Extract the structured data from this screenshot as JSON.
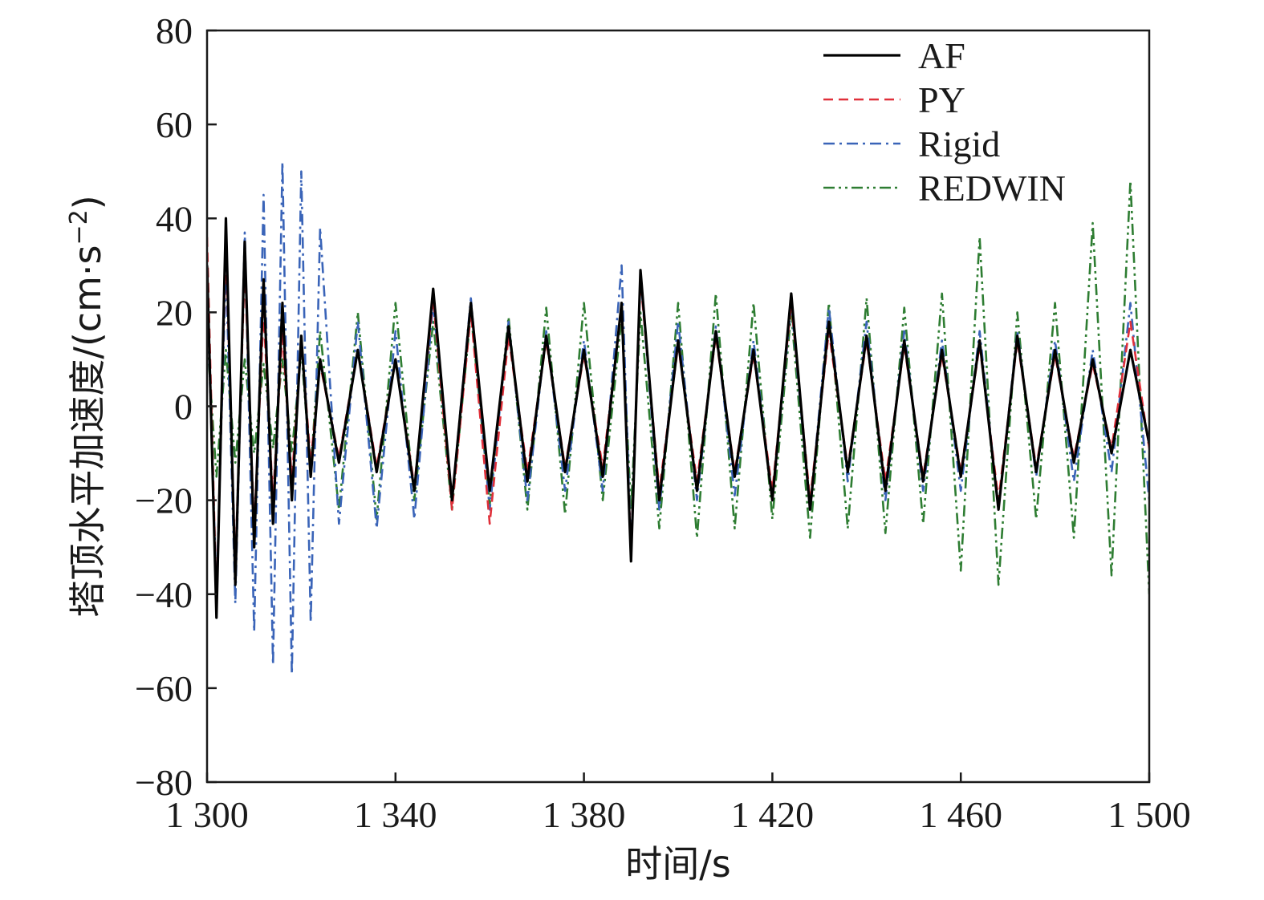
{
  "chart_data": {
    "type": "line",
    "xlabel": "时间/s",
    "ylabel": "塔顶水平加速度/(cm·s⁻²)",
    "ylabel_parts": {
      "main": "塔顶水平加速度/(cm·s",
      "sup": "−2",
      "end": ")"
    },
    "xlim": [
      1300,
      1500
    ],
    "ylim": [
      -80,
      80
    ],
    "xticks": [
      1300,
      1340,
      1380,
      1420,
      1460,
      1500
    ],
    "xtick_labels": [
      "1 300",
      "1 340",
      "1 380",
      "1 420",
      "1 460",
      "1 500"
    ],
    "yticks": [
      -80,
      -60,
      -40,
      -20,
      0,
      20,
      40,
      60,
      80
    ],
    "ytick_labels": [
      "−80",
      "−60",
      "−40",
      "−20",
      "0",
      "20",
      "40",
      "60",
      "80"
    ],
    "grid": false,
    "legend_position": "top-right",
    "series": [
      {
        "name": "AF",
        "color": "#000000",
        "dash": "solid",
        "x": [
          1300,
          1302,
          1304,
          1306,
          1308,
          1310,
          1312,
          1314,
          1316,
          1318,
          1320,
          1322,
          1324,
          1328,
          1332,
          1336,
          1340,
          1344,
          1348,
          1352,
          1356,
          1360,
          1364,
          1368,
          1372,
          1376,
          1380,
          1384,
          1388,
          1390,
          1392,
          1396,
          1400,
          1404,
          1408,
          1412,
          1416,
          1420,
          1424,
          1428,
          1432,
          1436,
          1440,
          1444,
          1448,
          1452,
          1456,
          1460,
          1464,
          1468,
          1472,
          1476,
          1480,
          1484,
          1488,
          1492,
          1496,
          1500
        ],
        "y": [
          30,
          -45,
          40,
          -38,
          35,
          -30,
          27,
          -25,
          22,
          -20,
          15,
          -15,
          10,
          -12,
          12,
          -14,
          10,
          -18,
          25,
          -20,
          22,
          -18,
          17,
          -16,
          15,
          -14,
          12,
          -15,
          22,
          -33,
          29,
          -20,
          14,
          -18,
          16,
          -15,
          12,
          -20,
          24,
          -22,
          18,
          -14,
          15,
          -18,
          14,
          -16,
          12,
          -15,
          14,
          -22,
          15,
          -14,
          12,
          -12,
          10,
          -10,
          12,
          -8
        ]
      },
      {
        "name": "PY",
        "color": "#e0303a",
        "dash": "dashed",
        "x": [
          1300,
          1302,
          1304,
          1306,
          1308,
          1310,
          1312,
          1314,
          1316,
          1318,
          1320,
          1322,
          1324,
          1328,
          1332,
          1336,
          1340,
          1344,
          1348,
          1352,
          1356,
          1360,
          1364,
          1368,
          1372,
          1376,
          1380,
          1384,
          1388,
          1390,
          1392,
          1396,
          1400,
          1404,
          1408,
          1412,
          1416,
          1420,
          1424,
          1428,
          1432,
          1436,
          1440,
          1444,
          1448,
          1452,
          1456,
          1460,
          1464,
          1468,
          1472,
          1476,
          1480,
          1484,
          1488,
          1492,
          1496,
          1500
        ],
        "y": [
          36,
          -42,
          35,
          -34,
          30,
          -26,
          20,
          -20,
          16,
          -16,
          14,
          -12,
          9,
          -11,
          12,
          -13,
          10,
          -17,
          23,
          -22,
          20,
          -25,
          15,
          -14,
          14,
          -13,
          11,
          -13,
          21,
          -31,
          27,
          -18,
          13,
          -16,
          15,
          -14,
          11,
          -18,
          22,
          -20,
          16,
          -13,
          14,
          -16,
          13,
          -15,
          11,
          -14,
          13,
          -20,
          14,
          -13,
          11,
          -11,
          9,
          -9,
          18,
          -9
        ]
      },
      {
        "name": "Rigid",
        "color": "#3a64b8",
        "dash": "dashdot",
        "x": [
          1300,
          1302,
          1304,
          1306,
          1308,
          1310,
          1312,
          1314,
          1316,
          1318,
          1320,
          1322,
          1324,
          1328,
          1332,
          1336,
          1340,
          1344,
          1348,
          1352,
          1356,
          1360,
          1364,
          1368,
          1372,
          1376,
          1380,
          1384,
          1388,
          1390,
          1392,
          1396,
          1400,
          1404,
          1408,
          1412,
          1416,
          1420,
          1424,
          1428,
          1432,
          1436,
          1440,
          1444,
          1448,
          1452,
          1456,
          1460,
          1464,
          1468,
          1472,
          1476,
          1480,
          1484,
          1488,
          1492,
          1496,
          1500
        ],
        "y": [
          25,
          -40,
          30,
          -42,
          37,
          -48,
          45,
          -55,
          52,
          -57,
          50,
          -46,
          38,
          -25,
          18,
          -26,
          16,
          -24,
          22,
          -20,
          23,
          -22,
          18,
          -20,
          16,
          -18,
          14,
          -18,
          30,
          -31,
          28,
          -22,
          18,
          -20,
          17,
          -19,
          14,
          -20,
          22,
          -22,
          21,
          -16,
          18,
          -20,
          16,
          -18,
          14,
          -18,
          16,
          -22,
          16,
          -15,
          14,
          -16,
          12,
          -14,
          22,
          -20
        ]
      },
      {
        "name": "REDWIN",
        "color": "#2e7d32",
        "dash": "dashdotdot",
        "x": [
          1300,
          1302,
          1304,
          1306,
          1308,
          1310,
          1312,
          1314,
          1316,
          1318,
          1320,
          1322,
          1324,
          1328,
          1332,
          1336,
          1340,
          1344,
          1348,
          1352,
          1356,
          1360,
          1364,
          1368,
          1372,
          1376,
          1380,
          1384,
          1388,
          1390,
          1392,
          1396,
          1400,
          1404,
          1408,
          1412,
          1416,
          1420,
          1424,
          1428,
          1432,
          1436,
          1440,
          1444,
          1448,
          1452,
          1456,
          1460,
          1464,
          1468,
          1472,
          1476,
          1480,
          1484,
          1488,
          1492,
          1496,
          1500
        ],
        "y": [
          15,
          -15,
          12,
          -12,
          10,
          -10,
          9,
          -9,
          10,
          -10,
          12,
          -14,
          16,
          -22,
          20,
          -24,
          22,
          -20,
          18,
          -22,
          20,
          -21,
          19,
          -22,
          21,
          -23,
          22,
          -20,
          19,
          -22,
          20,
          -26,
          22,
          -28,
          24,
          -26,
          22,
          -24,
          20,
          -28,
          22,
          -26,
          23,
          -27,
          21,
          -25,
          24,
          -35,
          36,
          -38,
          20,
          -24,
          22,
          -28,
          39,
          -36,
          48,
          -40
        ]
      }
    ]
  }
}
